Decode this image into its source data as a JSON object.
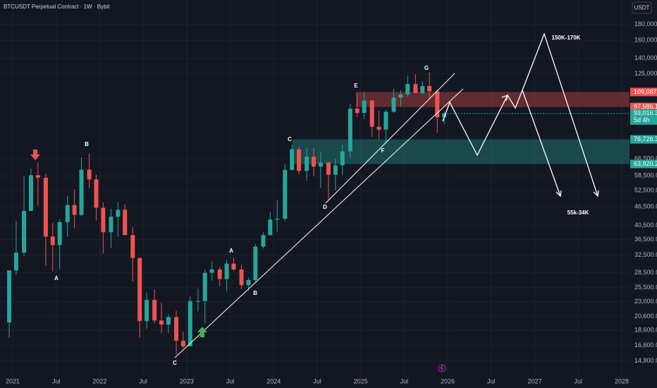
{
  "chart_data": {
    "type": "candlestick",
    "title": "BTCUSDT Perpetual Contract · 1W · Bybit",
    "currency": "USDT",
    "log_scale": true,
    "grid": true,
    "up_color": "#26a69a",
    "down_color": "#ef5350",
    "xlim": [
      2020.854,
      2028.09
    ],
    "xticks": [
      {
        "value": 2021,
        "label": "2021"
      },
      {
        "value": 2021.5,
        "label": "Jul"
      },
      {
        "value": 2022,
        "label": "2022"
      },
      {
        "value": 2022.5,
        "label": "Jul"
      },
      {
        "value": 2023,
        "label": "2023"
      },
      {
        "value": 2023.5,
        "label": "Jul"
      },
      {
        "value": 2024,
        "label": "2024"
      },
      {
        "value": 2024.5,
        "label": "Jul"
      },
      {
        "value": 2025,
        "label": "2025"
      },
      {
        "value": 2025.5,
        "label": "Jul"
      },
      {
        "value": 2026,
        "label": "2026"
      },
      {
        "value": 2026.5,
        "label": "Jul"
      },
      {
        "value": 2027,
        "label": "2027"
      },
      {
        "value": 2027.5,
        "label": "Jul"
      },
      {
        "value": 2028,
        "label": "2028"
      }
    ],
    "ylim": [
      13100,
      216000
    ],
    "yticks": [
      {
        "value": 180000,
        "label": "180,000.0"
      },
      {
        "value": 160000,
        "label": "160,000.0"
      },
      {
        "value": 140000,
        "label": "140,000.0"
      },
      {
        "value": 125000,
        "label": "125,000.0"
      },
      {
        "value": 66500,
        "label": "66,500.0"
      },
      {
        "value": 58500,
        "label": "58,500.0"
      },
      {
        "value": 52500,
        "label": "52,500.0"
      },
      {
        "value": 46500,
        "label": "46,500.0"
      },
      {
        "value": 40500,
        "label": "40,500.0"
      },
      {
        "value": 36500,
        "label": "36,500.0"
      },
      {
        "value": 32500,
        "label": "32,500.0"
      },
      {
        "value": 28500,
        "label": "28,500.0"
      },
      {
        "value": 25500,
        "label": "25,500.0"
      },
      {
        "value": 23000,
        "label": "23,000.0"
      },
      {
        "value": 20600,
        "label": "20,600.0"
      },
      {
        "value": 18600,
        "label": "18,600.0"
      },
      {
        "value": 16600,
        "label": "16,600.0"
      },
      {
        "value": 14800,
        "label": "14,800.0"
      }
    ],
    "x": [
      2020.96,
      2021.04,
      2021.13,
      2021.21,
      2021.29,
      2021.38,
      2021.46,
      2021.54,
      2021.63,
      2021.71,
      2021.79,
      2021.88,
      2021.96,
      2022.04,
      2022.13,
      2022.21,
      2022.29,
      2022.38,
      2022.46,
      2022.54,
      2022.63,
      2022.71,
      2022.79,
      2022.88,
      2022.96,
      2023.04,
      2023.13,
      2023.21,
      2023.29,
      2023.38,
      2023.46,
      2023.54,
      2023.63,
      2023.71,
      2023.79,
      2023.88,
      2023.96,
      2024.04,
      2024.13,
      2024.21,
      2024.29,
      2024.38,
      2024.46,
      2024.54,
      2024.63,
      2024.71,
      2024.79,
      2024.88,
      2024.96,
      2025.04,
      2025.13,
      2025.21,
      2025.29,
      2025.38,
      2025.46,
      2025.54,
      2025.63,
      2025.71,
      2025.79,
      2025.88,
      2025.96
    ],
    "open": [
      19700,
      29000,
      33100,
      45100,
      58800,
      57700,
      37300,
      35000,
      41500,
      47100,
      43800,
      61300,
      57000,
      46200,
      38500,
      43200,
      45500,
      37700,
      31800,
      19900,
      23300,
      20000,
      19400,
      20500,
      17200,
      16500,
      23100,
      23100,
      28500,
      29200,
      27200,
      30500,
      29200,
      26000,
      27000,
      34600,
      37700,
      42300,
      42600,
      61200,
      71300,
      60700,
      67500,
      62700,
      64600,
      59000,
      63300,
      70200,
      96400,
      93400,
      102400,
      84300,
      82500,
      94200,
      104600,
      107100,
      115700,
      108200,
      114000,
      109600,
      90400
    ],
    "high": [
      29000,
      41900,
      58300,
      61700,
      64800,
      59500,
      41300,
      42300,
      50500,
      52900,
      67000,
      69000,
      59000,
      48000,
      45800,
      48200,
      47400,
      40000,
      31900,
      24600,
      25200,
      22800,
      20900,
      21500,
      18400,
      23900,
      25300,
      29200,
      31000,
      29800,
      31400,
      31800,
      30200,
      27500,
      35200,
      38500,
      44700,
      48900,
      64000,
      73800,
      72800,
      71900,
      72000,
      70000,
      65100,
      66500,
      73600,
      99800,
      108300,
      109300,
      102500,
      95000,
      95700,
      111900,
      110500,
      123200,
      124400,
      117900,
      126200,
      111200,
      94500
    ],
    "low": [
      17600,
      28100,
      32300,
      45000,
      47000,
      30000,
      28800,
      29300,
      37300,
      39600,
      43300,
      53300,
      42000,
      32900,
      34300,
      37200,
      37700,
      26700,
      17600,
      18800,
      19600,
      18200,
      18200,
      15500,
      16300,
      16500,
      21400,
      19500,
      26900,
      25800,
      24800,
      28900,
      25200,
      24900,
      26600,
      34100,
      37600,
      38500,
      41900,
      60800,
      59200,
      56500,
      58400,
      53500,
      49000,
      52500,
      58900,
      66800,
      90500,
      89200,
      78200,
      76600,
      74500,
      93300,
      98200,
      105300,
      108700,
      107200,
      104000,
      80600,
      86000
    ],
    "close": [
      29000,
      33100,
      45100,
      58800,
      57700,
      37300,
      35000,
      41500,
      47100,
      43800,
      61300,
      57000,
      46200,
      38500,
      43200,
      45500,
      37700,
      31800,
      19900,
      23300,
      20000,
      19400,
      20500,
      17200,
      16500,
      23100,
      23100,
      28500,
      29200,
      27200,
      30500,
      29200,
      26000,
      27000,
      34600,
      37700,
      42300,
      42600,
      61200,
      71300,
      60700,
      67500,
      62700,
      64600,
      59000,
      63300,
      70200,
      96400,
      93400,
      102400,
      84300,
      82500,
      94200,
      104600,
      107100,
      115700,
      108200,
      114000,
      109600,
      90400,
      93016.3
    ],
    "zones": [
      {
        "from": {
          "value": 97586.1,
          "label": "97,586.1"
        },
        "to": {
          "value": 109087.5,
          "label": "109,087.5"
        },
        "color": "#ef5350"
      },
      {
        "from": {
          "value": 63920.2,
          "label": "63,920.2"
        },
        "to": {
          "value": 76726.3,
          "label": "76,726.3"
        },
        "color": "#26a69a"
      }
    ],
    "last_price": {
      "value": 93016.3,
      "label": "93,016.3"
    },
    "countdown": "5d 4h",
    "annotations": [
      "B",
      "A",
      "C",
      "A",
      "B",
      "C",
      "D",
      "E",
      "F",
      "G",
      "150K-170K",
      "55k-34K"
    ]
  }
}
